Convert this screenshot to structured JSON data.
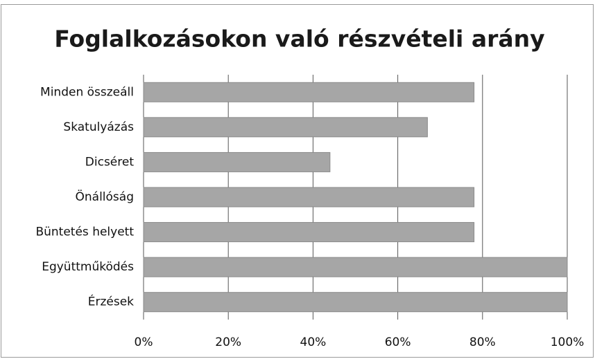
{
  "chart_data": {
    "type": "bar",
    "orientation": "horizontal",
    "title": "Foglalkozásokon való részvételi arány",
    "categories": [
      "Minden összeáll",
      "Skatulyázás",
      "Dicséret",
      "Önállóság",
      "Büntetés helyett",
      "Együttműködés",
      "Érzések"
    ],
    "values": [
      78,
      67,
      44,
      78,
      78,
      100,
      100
    ],
    "color": "#a6a6a6",
    "xlim": [
      0,
      100
    ],
    "xticks": [
      {
        "value": 0,
        "label": "0%"
      },
      {
        "value": 20,
        "label": "20%"
      },
      {
        "value": 40,
        "label": "40%"
      },
      {
        "value": 60,
        "label": "60%"
      },
      {
        "value": 80,
        "label": "80%"
      },
      {
        "value": 100,
        "label": "100%"
      }
    ],
    "grid": true
  }
}
